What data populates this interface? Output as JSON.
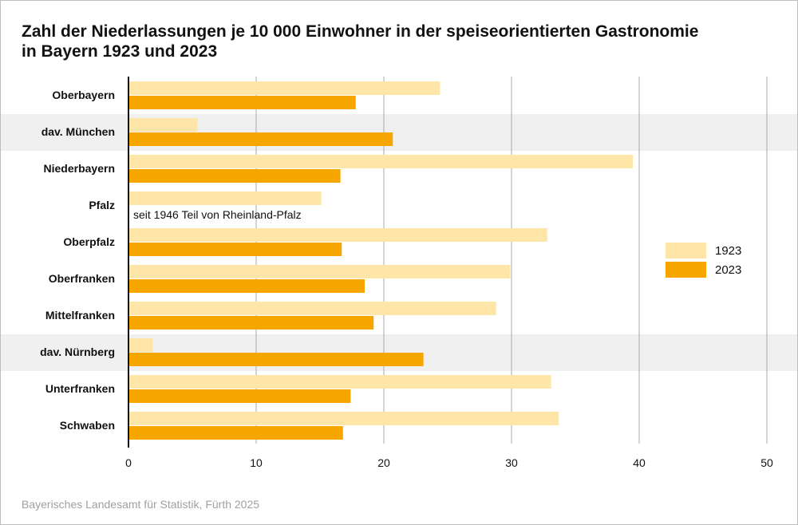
{
  "title_line1": "Zahl der Niederlassungen je 10 000 Einwohner in der speiseorientierten Gastronomie",
  "title_line2": "in Bayern 1923 und 2023",
  "footer": "Bayerisches Landesamt für Statistik, Fürth 2025",
  "chart_data": {
    "type": "bar",
    "orientation": "horizontal",
    "categories": [
      "Oberbayern",
      "dav. München",
      "Niederbayern",
      "Pfalz",
      "Oberpfalz",
      "Oberfranken",
      "Mittelfranken",
      "dav. Nürnberg",
      "Unterfranken",
      "Schwaben"
    ],
    "highlighted_categories": [
      "dav. München",
      "dav. Nürnberg"
    ],
    "series": [
      {
        "name": "1923",
        "color": "#FEE6A8",
        "values": [
          24.4,
          5.4,
          39.5,
          15.1,
          32.8,
          29.9,
          28.8,
          1.9,
          33.1,
          33.7
        ]
      },
      {
        "name": "2023",
        "color": "#F7A600",
        "values": [
          17.8,
          20.7,
          16.6,
          null,
          16.7,
          18.5,
          19.2,
          23.1,
          17.4,
          16.8
        ]
      }
    ],
    "annotation": "seit 1946 Teil von Rheinland-Pfalz",
    "xlim": [
      0,
      50
    ],
    "xticks": [
      "0",
      "10",
      "20",
      "30",
      "40",
      "50"
    ],
    "grid": true,
    "legend_position": "right"
  }
}
